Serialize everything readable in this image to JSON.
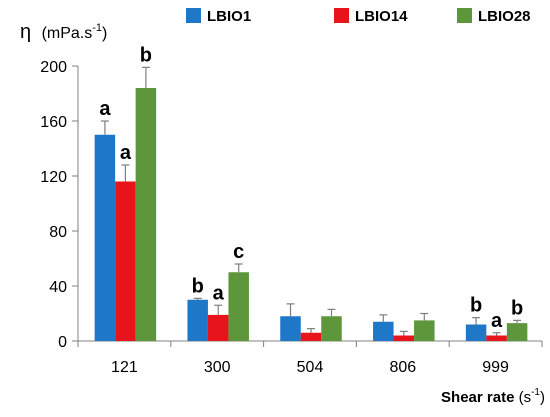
{
  "chart_data": {
    "type": "bar",
    "categories": [
      "121",
      "300",
      "504",
      "806",
      "999"
    ],
    "series": [
      {
        "name": "LBIO1",
        "color": "#1F77C8",
        "values": [
          150,
          30,
          18,
          14,
          12
        ],
        "errors": [
          10,
          1,
          9,
          5,
          5
        ],
        "labels": [
          "a",
          "b",
          "",
          "",
          "b"
        ]
      },
      {
        "name": "LBIO14",
        "color": "#E8141B",
        "values": [
          116,
          19,
          6,
          4,
          4
        ],
        "errors": [
          12,
          7,
          3,
          3,
          2
        ],
        "labels": [
          "a",
          "a",
          "",
          "",
          "a"
        ]
      },
      {
        "name": "LBIO28",
        "color": "#5E963C",
        "values": [
          184,
          50,
          18,
          15,
          13
        ],
        "errors": [
          15,
          6,
          5,
          5,
          2
        ],
        "labels": [
          "b",
          "c",
          "",
          "",
          "b"
        ]
      }
    ],
    "yticks": [
      0,
      40,
      80,
      120,
      160,
      200
    ],
    "ylim": [
      0,
      200
    ],
    "ylabel_symbol": "η",
    "ylabel_unit": "(mPa.s",
    "ylabel_unit_sup": "-1",
    "ylabel_unit_end": ")",
    "xlabel_main": "Shear rate",
    "xlabel_unit": " (s",
    "xlabel_unit_sup": "-1",
    "xlabel_unit_end": ")",
    "grid": false,
    "legend_position": "top"
  }
}
